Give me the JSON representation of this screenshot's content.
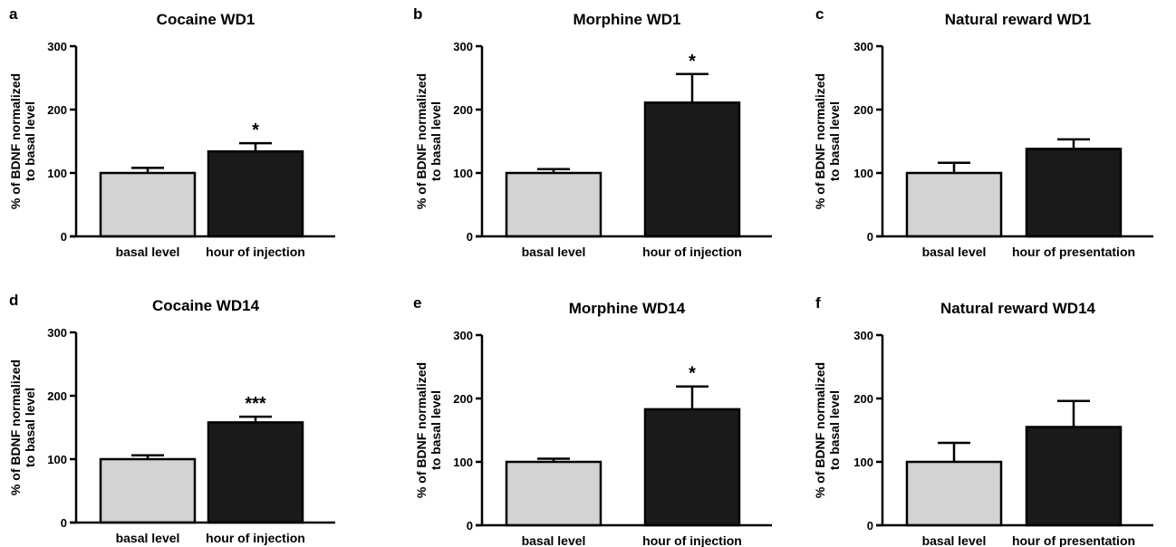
{
  "chart_data": [
    {
      "type": "bar",
      "letter": "a",
      "title": "Cocaine WD1",
      "ylabel": [
        "% of BDNF normalized",
        "to basal level"
      ],
      "categories": [
        "basal level",
        "hour of injection"
      ],
      "values": [
        100,
        134
      ],
      "errors": [
        8,
        13
      ],
      "significance": [
        "",
        "*"
      ],
      "colors": [
        "#d3d3d3",
        "#1a1a1a"
      ],
      "ylim": [
        0,
        300
      ],
      "yticks": [
        0,
        100,
        200,
        300
      ],
      "grid": false
    },
    {
      "type": "bar",
      "letter": "b",
      "title": "Morphine WD1",
      "ylabel": [
        "% of BDNF normalized",
        "to basal level"
      ],
      "categories": [
        "basal level",
        "hour of injection"
      ],
      "values": [
        100,
        211
      ],
      "errors": [
        6,
        45
      ],
      "significance": [
        "",
        "*"
      ],
      "colors": [
        "#d3d3d3",
        "#1a1a1a"
      ],
      "ylim": [
        0,
        300
      ],
      "yticks": [
        0,
        100,
        200,
        300
      ],
      "grid": false
    },
    {
      "type": "bar",
      "letter": "c",
      "title": "Natural reward WD1",
      "ylabel": [
        "% of BDNF normalized",
        "to basal level"
      ],
      "categories": [
        "basal level",
        "hour of presentation"
      ],
      "values": [
        100,
        138
      ],
      "errors": [
        16,
        15
      ],
      "significance": [
        "",
        ""
      ],
      "colors": [
        "#d3d3d3",
        "#1a1a1a"
      ],
      "ylim": [
        0,
        300
      ],
      "yticks": [
        0,
        100,
        200,
        300
      ],
      "grid": false
    },
    {
      "type": "bar",
      "letter": "d",
      "title": "Cocaine WD14",
      "ylabel": [
        "% of BDNF normalized",
        "to basal level"
      ],
      "categories": [
        "basal level",
        "hour of injection"
      ],
      "values": [
        100,
        158
      ],
      "errors": [
        6,
        9
      ],
      "significance": [
        "",
        "***"
      ],
      "colors": [
        "#d3d3d3",
        "#1a1a1a"
      ],
      "ylim": [
        0,
        300
      ],
      "yticks": [
        0,
        100,
        200,
        300
      ],
      "grid": false
    },
    {
      "type": "bar",
      "letter": "e",
      "title": "Morphine WD14",
      "ylabel": [
        "% of BDNF normalized",
        "to basal level"
      ],
      "categories": [
        "basal level",
        "hour of injection"
      ],
      "values": [
        100,
        183
      ],
      "errors": [
        5,
        36
      ],
      "significance": [
        "",
        "*"
      ],
      "colors": [
        "#d3d3d3",
        "#1a1a1a"
      ],
      "ylim": [
        0,
        300
      ],
      "yticks": [
        0,
        100,
        200,
        300
      ],
      "grid": false
    },
    {
      "type": "bar",
      "letter": "f",
      "title": "Natural reward WD14",
      "ylabel": [
        "% of BDNF normalized",
        "to basal level"
      ],
      "categories": [
        "basal level",
        "hour of presentation"
      ],
      "values": [
        100,
        155
      ],
      "errors": [
        30,
        41
      ],
      "significance": [
        "",
        ""
      ],
      "colors": [
        "#d3d3d3",
        "#1a1a1a"
      ],
      "ylim": [
        0,
        300
      ],
      "yticks": [
        0,
        100,
        200,
        300
      ],
      "grid": false
    }
  ]
}
